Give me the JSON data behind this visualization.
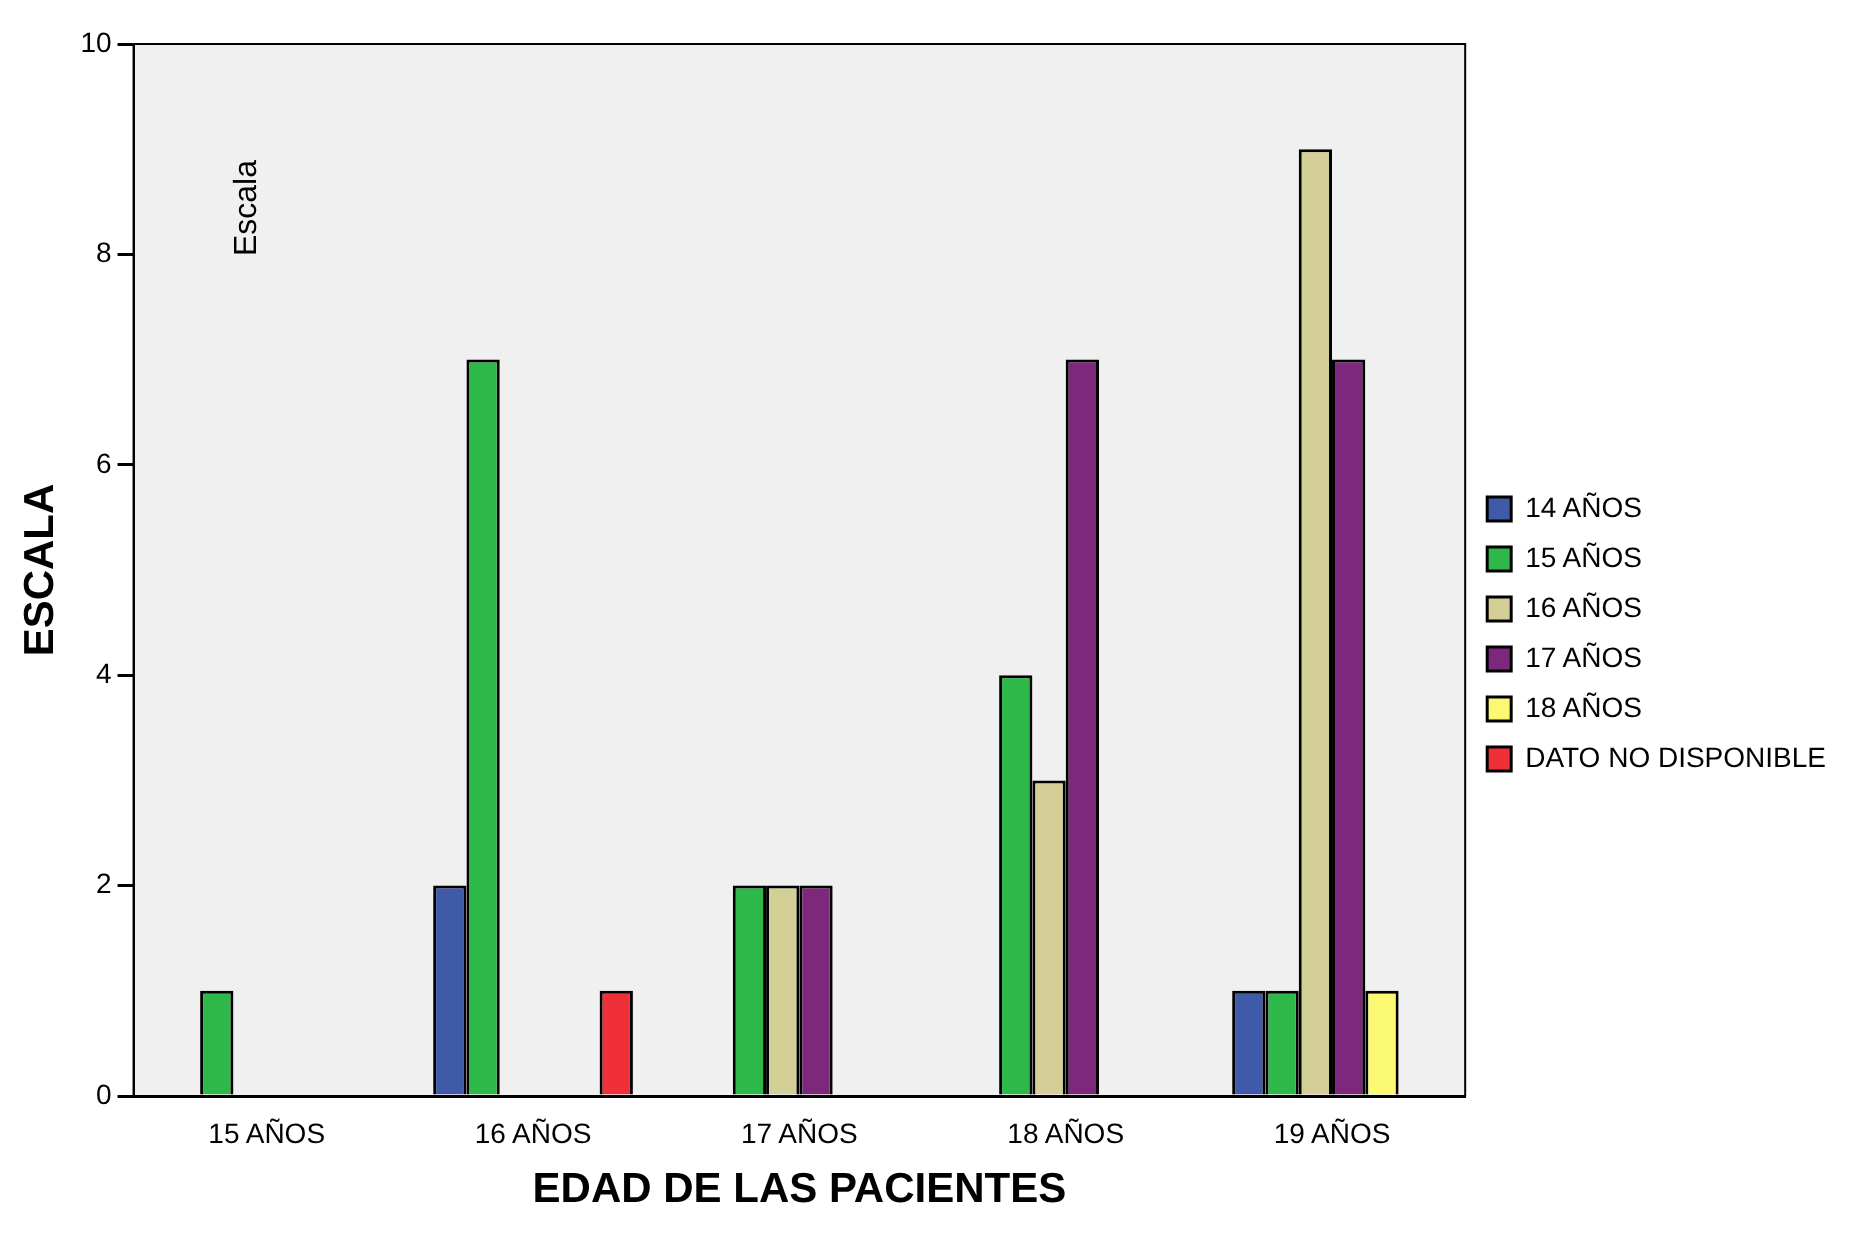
{
  "chart_data": {
    "type": "bar",
    "xlabel": "EDAD DE LAS PACIENTES",
    "ylabel": "ESCALA",
    "categories": [
      "15 AÑOS",
      "16 AÑOS",
      "17 AÑOS",
      "18 AÑOS",
      "19 AÑOS"
    ],
    "series": [
      {
        "name": "14 AÑOS",
        "color": "#3f5aa8",
        "values": [
          null,
          2,
          null,
          null,
          1
        ]
      },
      {
        "name": "15 AÑOS",
        "color": "#2fb84a",
        "values": [
          1,
          7,
          2,
          4,
          1
        ]
      },
      {
        "name": "16 AÑOS",
        "color": "#d4cf96",
        "values": [
          null,
          null,
          2,
          3,
          9
        ]
      },
      {
        "name": "17 AÑOS",
        "color": "#7d287c",
        "values": [
          null,
          null,
          2,
          7,
          7
        ]
      },
      {
        "name": "18 AÑOS",
        "color": "#fbf872",
        "values": [
          null,
          null,
          null,
          null,
          1
        ]
      },
      {
        "name": "DATO NO DISPONIBLE",
        "color": "#ef3038",
        "values": [
          null,
          1,
          null,
          null,
          null
        ]
      }
    ],
    "ylim": [
      0,
      10
    ],
    "yticks": [
      0,
      2,
      4,
      6,
      8,
      10
    ],
    "grid": false,
    "legend": "right",
    "annotations": [
      "Escala"
    ]
  }
}
